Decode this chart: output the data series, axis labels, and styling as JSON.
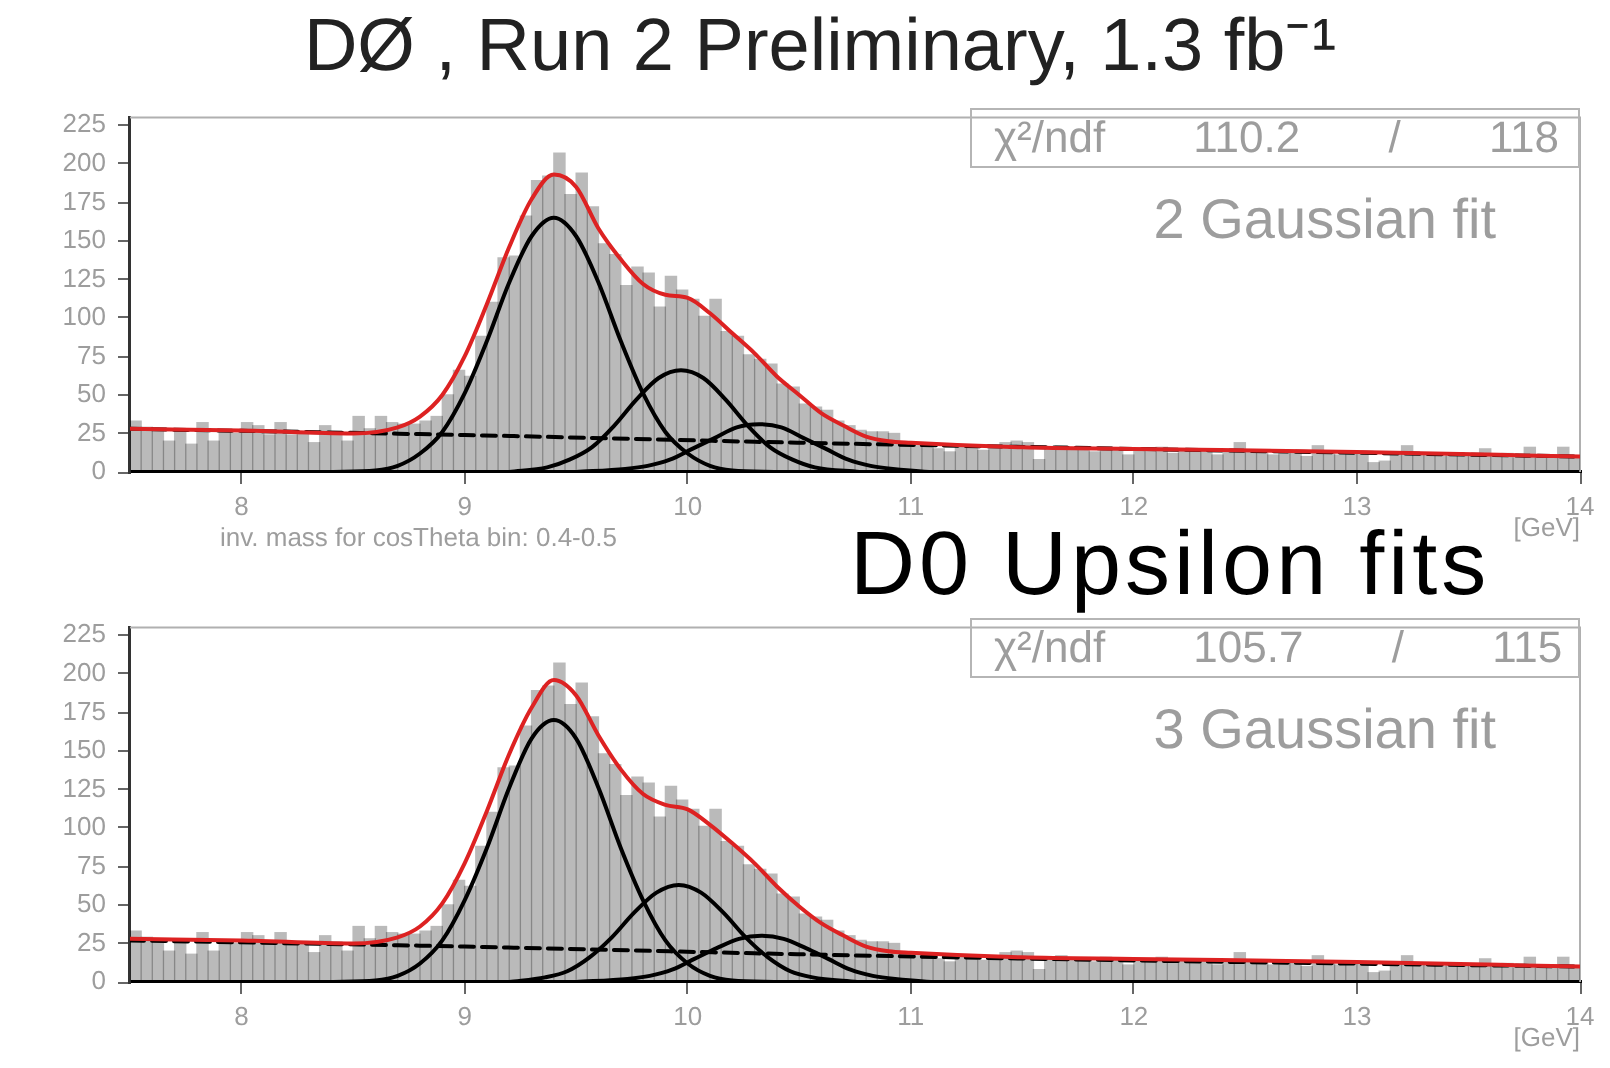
{
  "chart_data": [
    {
      "type": "histogram",
      "title": "DØ , Run 2 Preliminary, 1.3 fb⁻¹",
      "xlabel": "[GeV]",
      "annotations": [
        "χ²/ndf 110.2 / 118",
        "2 Gaussian fit",
        "inv. mass for cosTheta bin: 0.4-0.5",
        "D0 Upsilon fits"
      ],
      "xlim": [
        7.5,
        14
      ],
      "xticks": [
        8,
        9,
        10,
        11,
        12,
        13,
        14
      ],
      "ylim": [
        0,
        230
      ],
      "yticks": [
        0,
        25,
        50,
        75,
        100,
        125,
        150,
        175,
        200,
        225
      ],
      "bins": [
        7.5,
        7.55,
        7.6,
        7.65,
        7.7,
        7.75,
        7.8,
        7.85,
        7.9,
        7.95,
        8,
        8.05,
        8.1,
        8.15,
        8.2,
        8.25,
        8.3,
        8.35,
        8.4,
        8.45,
        8.5,
        8.55,
        8.6,
        8.65,
        8.7,
        8.75,
        8.8,
        8.85,
        8.9,
        8.95,
        9,
        9.05,
        9.1,
        9.15,
        9.2,
        9.25,
        9.3,
        9.35,
        9.4,
        9.45,
        9.5,
        9.55,
        9.6,
        9.65,
        9.7,
        9.75,
        9.8,
        9.85,
        9.9,
        9.95,
        10,
        10.05,
        10.1,
        10.15,
        10.2,
        10.25,
        10.3,
        10.35,
        10.4,
        10.45,
        10.5,
        10.55,
        10.6,
        10.65,
        10.7,
        10.75,
        10.8,
        10.85,
        10.9,
        10.95,
        11,
        11.05,
        11.1,
        11.15,
        11.2,
        11.25,
        11.3,
        11.35,
        11.4,
        11.45,
        11.5,
        11.55,
        11.6,
        11.65,
        11.7,
        11.75,
        11.8,
        11.85,
        11.9,
        11.95,
        12,
        12.05,
        12.1,
        12.15,
        12.2,
        12.25,
        12.3,
        12.35,
        12.4,
        12.45,
        12.5,
        12.55,
        12.6,
        12.65,
        12.7,
        12.75,
        12.8,
        12.85,
        12.9,
        12.95,
        13,
        13.05,
        13.1,
        13.15,
        13.2,
        13.25,
        13.3,
        13.35,
        13.4,
        13.45,
        13.5,
        13.55,
        13.6,
        13.65,
        13.7,
        13.75,
        13.8,
        13.85,
        13.9,
        13.95,
        14
      ],
      "series": [
        {
          "color": "#000000",
          "values": [
            33,
            29,
            26,
            20,
            26,
            18,
            32,
            20,
            26,
            25,
            32,
            30,
            24,
            32,
            24,
            26,
            19,
            30,
            26,
            20,
            36,
            28,
            36,
            32,
            31,
            31,
            33,
            36,
            50,
            66,
            62,
            88,
            110,
            139,
            140,
            166,
            189,
            192,
            207,
            180,
            194,
            172,
            148,
            141,
            121,
            133,
            129,
            107,
            127,
            118,
            112,
            101,
            112,
            91,
            88,
            76,
            73,
            70,
            57,
            55,
            44,
            42,
            40,
            33,
            30,
            27,
            26,
            26,
            25,
            18,
            17,
            18,
            15,
            13,
            17,
            16,
            14,
            15,
            19,
            20,
            19,
            8,
            16,
            17,
            14,
            15,
            13,
            16,
            14,
            11,
            15,
            13,
            16,
            12,
            15,
            13,
            14,
            11,
            13,
            19,
            13,
            12,
            11,
            14,
            12,
            10,
            17,
            12,
            11,
            12,
            13,
            6,
            7,
            12,
            17,
            11,
            12,
            10,
            11,
            12,
            10,
            15,
            11,
            12,
            9,
            16,
            10,
            11,
            16,
            9
          ]
        },
        {
          "type": "line",
          "color": "#000000",
          "line_style": "dashed",
          "x": [
            7.5,
            9,
            10.5,
            12,
            14
          ],
          "values": [
            28,
            24,
            19,
            15,
            10
          ]
        },
        {
          "type": "line",
          "color": "#000000",
          "x": [
            8.4,
            8.6,
            8.7,
            8.8,
            8.9,
            9,
            9.1,
            9.2,
            9.3,
            9.4,
            9.5,
            9.6,
            9.7,
            9.8,
            9.9,
            10,
            10.1,
            10.2,
            10.4
          ],
          "values": [
            0,
            1,
            4,
            12,
            26,
            51,
            85,
            123,
            153,
            165,
            153,
            123,
            85,
            51,
            26,
            12,
            4,
            1,
            0
          ]
        },
        {
          "type": "line",
          "color": "#000000",
          "x": [
            9.2,
            9.37,
            9.47,
            9.57,
            9.67,
            9.77,
            9.87,
            9.97,
            10.07,
            10.17,
            10.27,
            10.37,
            10.47,
            10.57,
            10.77
          ],
          "values": [
            0,
            3,
            8,
            16,
            30,
            47,
            61,
            66,
            61,
            47,
            30,
            16,
            8,
            3,
            0
          ]
        },
        {
          "type": "line",
          "color": "#000000",
          "x": [
            9.5,
            9.72,
            9.82,
            9.92,
            10.02,
            10.12,
            10.22,
            10.32,
            10.42,
            10.52,
            10.62,
            10.72,
            10.82,
            10.92,
            11.12,
            12.45
          ],
          "values": [
            0,
            2,
            4,
            8,
            15,
            22,
            29,
            31,
            29,
            22,
            15,
            8,
            4,
            2,
            0,
            0
          ]
        },
        {
          "type": "line",
          "color": "#dd2222",
          "x": [
            7.5,
            8,
            8.5,
            8.7,
            8.8,
            8.9,
            9,
            9.1,
            9.2,
            9.3,
            9.4,
            9.5,
            9.6,
            9.7,
            9.8,
            9.9,
            10,
            10.1,
            10.2,
            10.3,
            10.4,
            10.5,
            10.6,
            10.7,
            10.8,
            10.9,
            11,
            11.5,
            12,
            13,
            14
          ],
          "values": [
            28,
            27,
            25,
            29,
            36,
            50,
            75,
            109,
            146,
            177,
            193,
            185,
            158,
            138,
            122,
            115,
            113,
            103,
            90,
            77,
            62,
            50,
            38,
            30,
            23,
            20,
            19,
            16,
            15,
            13,
            10
          ]
        }
      ]
    },
    {
      "type": "histogram",
      "xlabel": "[GeV]",
      "annotations": [
        "χ²/ndf 105.7 / 115",
        "3 Gaussian fit"
      ],
      "xlim": [
        7.5,
        14
      ],
      "xticks": [
        8,
        9,
        10,
        11,
        12,
        13,
        14
      ],
      "ylim": [
        0,
        230
      ],
      "yticks": [
        0,
        25,
        50,
        75,
        100,
        125,
        150,
        175,
        200,
        225
      ],
      "bins": [
        7.5,
        7.55,
        7.6,
        7.65,
        7.7,
        7.75,
        7.8,
        7.85,
        7.9,
        7.95,
        8,
        8.05,
        8.1,
        8.15,
        8.2,
        8.25,
        8.3,
        8.35,
        8.4,
        8.45,
        8.5,
        8.55,
        8.6,
        8.65,
        8.7,
        8.75,
        8.8,
        8.85,
        8.9,
        8.95,
        9,
        9.05,
        9.1,
        9.15,
        9.2,
        9.25,
        9.3,
        9.35,
        9.4,
        9.45,
        9.5,
        9.55,
        9.6,
        9.65,
        9.7,
        9.75,
        9.8,
        9.85,
        9.9,
        9.95,
        10,
        10.05,
        10.1,
        10.15,
        10.2,
        10.25,
        10.3,
        10.35,
        10.4,
        10.45,
        10.5,
        10.55,
        10.6,
        10.65,
        10.7,
        10.75,
        10.8,
        10.85,
        10.9,
        10.95,
        11,
        11.05,
        11.1,
        11.15,
        11.2,
        11.25,
        11.3,
        11.35,
        11.4,
        11.45,
        11.5,
        11.55,
        11.6,
        11.65,
        11.7,
        11.75,
        11.8,
        11.85,
        11.9,
        11.95,
        12,
        12.05,
        12.1,
        12.15,
        12.2,
        12.25,
        12.3,
        12.35,
        12.4,
        12.45,
        12.5,
        12.55,
        12.6,
        12.65,
        12.7,
        12.75,
        12.8,
        12.85,
        12.9,
        12.95,
        13,
        13.05,
        13.1,
        13.15,
        13.2,
        13.25,
        13.3,
        13.35,
        13.4,
        13.45,
        13.5,
        13.55,
        13.6,
        13.65,
        13.7,
        13.75,
        13.8,
        13.85,
        13.9,
        13.95,
        14
      ],
      "series": [
        {
          "color": "#000000",
          "values": [
            33,
            29,
            26,
            20,
            26,
            18,
            32,
            20,
            26,
            25,
            32,
            30,
            24,
            32,
            24,
            26,
            19,
            30,
            26,
            20,
            36,
            28,
            36,
            32,
            31,
            31,
            33,
            36,
            50,
            66,
            62,
            88,
            110,
            139,
            140,
            166,
            189,
            192,
            207,
            180,
            194,
            172,
            148,
            141,
            121,
            133,
            129,
            107,
            127,
            118,
            112,
            101,
            112,
            91,
            88,
            76,
            73,
            70,
            57,
            55,
            44,
            42,
            40,
            33,
            30,
            27,
            26,
            26,
            25,
            18,
            17,
            18,
            15,
            13,
            17,
            16,
            14,
            15,
            19,
            20,
            19,
            8,
            16,
            17,
            14,
            15,
            13,
            16,
            14,
            11,
            15,
            13,
            16,
            12,
            15,
            13,
            14,
            11,
            13,
            19,
            13,
            12,
            11,
            14,
            12,
            10,
            17,
            12,
            11,
            12,
            13,
            6,
            7,
            12,
            17,
            11,
            12,
            10,
            11,
            12,
            10,
            15,
            11,
            12,
            9,
            16,
            10,
            11,
            16,
            9
          ]
        },
        {
          "type": "line",
          "color": "#000000",
          "line_style": "dashed",
          "x": [
            7.5,
            9,
            10.5,
            12,
            14
          ],
          "values": [
            27,
            23,
            18,
            14,
            10
          ]
        },
        {
          "type": "line",
          "color": "#000000",
          "x": [
            8.4,
            8.6,
            8.7,
            8.8,
            8.9,
            9,
            9.1,
            9.2,
            9.3,
            9.4,
            9.5,
            9.6,
            9.7,
            9.8,
            9.9,
            10,
            10.1,
            10.2,
            10.4
          ],
          "values": [
            0,
            1,
            4,
            12,
            27,
            53,
            87,
            126,
            158,
            170,
            158,
            126,
            87,
            53,
            27,
            12,
            4,
            1,
            0
          ]
        },
        {
          "type": "line",
          "color": "#000000",
          "x": [
            9.2,
            9.36,
            9.46,
            9.56,
            9.66,
            9.76,
            9.86,
            9.96,
            10.06,
            10.16,
            10.26,
            10.36,
            10.46,
            10.56,
            10.76
          ],
          "values": [
            0,
            3,
            7,
            16,
            29,
            45,
            58,
            63,
            58,
            45,
            29,
            16,
            7,
            3,
            0
          ]
        },
        {
          "type": "line",
          "color": "#000000",
          "x": [
            9.5,
            9.73,
            9.83,
            9.93,
            10.03,
            10.13,
            10.23,
            10.33,
            10.43,
            10.53,
            10.63,
            10.73,
            10.83,
            10.93,
            11.13,
            12.45
          ],
          "values": [
            0,
            2,
            4,
            8,
            15,
            22,
            28,
            30,
            28,
            22,
            15,
            8,
            4,
            2,
            0,
            0
          ]
        },
        {
          "type": "line",
          "color": "#dd2222",
          "x": [
            7.5,
            8,
            8.5,
            8.7,
            8.8,
            8.9,
            9,
            9.1,
            9.2,
            9.3,
            9.4,
            9.5,
            9.6,
            9.7,
            9.8,
            9.9,
            10,
            10.1,
            10.2,
            10.3,
            10.4,
            10.5,
            10.6,
            10.7,
            10.8,
            10.9,
            11,
            11.5,
            12,
            13,
            14
          ],
          "values": [
            28,
            27,
            25,
            29,
            36,
            51,
            77,
            111,
            148,
            178,
            196,
            186,
            160,
            138,
            122,
            115,
            112,
            102,
            90,
            77,
            62,
            49,
            38,
            30,
            23,
            20,
            19,
            16,
            15,
            13,
            10
          ]
        }
      ]
    }
  ]
}
